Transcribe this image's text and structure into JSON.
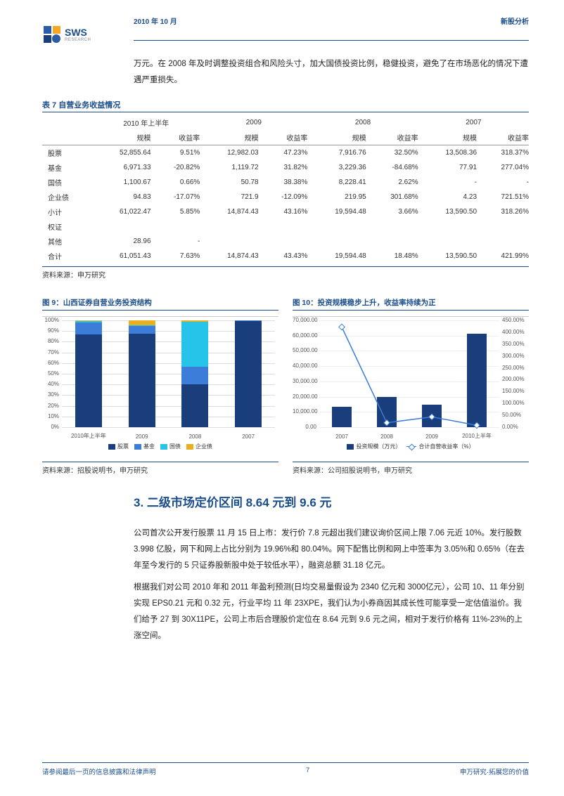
{
  "header": {
    "date": "2010 年 10 月",
    "category": "新股分析"
  },
  "logo": {
    "brand": "SWS",
    "sub": "RESEARCH"
  },
  "intro": "万元。在 2008 年及时调整投资组合和风险头寸，加大国债投资比例，稳健投资，避免了在市场恶化的情况下遭遇严重损失。",
  "table": {
    "title": "表 7 自营业务收益情况",
    "periods": [
      "2010 年上半年",
      "2009",
      "2008",
      "2007"
    ],
    "sub": [
      "规模",
      "收益率"
    ],
    "rows": [
      {
        "label": "股票",
        "cells": [
          "52,855.64",
          "9.51%",
          "12,982.03",
          "47.23%",
          "7,916.76",
          "32.50%",
          "13,508.36",
          "318.37%"
        ]
      },
      {
        "label": "基金",
        "cells": [
          "6,971.33",
          "-20.82%",
          "1,119.72",
          "31.82%",
          "3,229.36",
          "-84.68%",
          "77.91",
          "277.04%"
        ]
      },
      {
        "label": "国债",
        "cells": [
          "1,100.67",
          "0.66%",
          "50.78",
          "38.38%",
          "8,228.41",
          "2.62%",
          "-",
          "-"
        ]
      },
      {
        "label": "企业债",
        "cells": [
          "94.83",
          "-17.07%",
          "721.9",
          "-12.09%",
          "219.95",
          "301.68%",
          "4.23",
          "721.51%"
        ]
      },
      {
        "label": "小计",
        "cells": [
          "61,022.47",
          "5.85%",
          "14,874.43",
          "43.16%",
          "19,594.48",
          "3.66%",
          "13,590.50",
          "318.26%"
        ]
      },
      {
        "label": "权证",
        "cells": [
          "",
          "",
          "",
          "",
          "",
          "",
          "",
          ""
        ]
      },
      {
        "label": "其他",
        "cells": [
          "28.96",
          "-",
          "",
          "",
          "",
          "",
          "",
          ""
        ]
      },
      {
        "label": "合计",
        "cells": [
          "61,051.43",
          "7.63%",
          "14,874.43",
          "43.43%",
          "19,594.48",
          "18.48%",
          "13,590.50",
          "421.99%"
        ]
      }
    ],
    "source": "资料来源：申万研究"
  },
  "chart9": {
    "title": "图 9：山西证券自营业务投资结构",
    "type": "stacked-bar-100",
    "categories": [
      "2010年上半年",
      "2009",
      "2008",
      "2007"
    ],
    "series": [
      {
        "name": "股票",
        "color": "#1a3d7c",
        "values": [
          86.6,
          87.3,
          40.4,
          99.4
        ]
      },
      {
        "name": "基金",
        "color": "#3b7dd8",
        "values": [
          11.4,
          7.5,
          16.5,
          0.57
        ]
      },
      {
        "name": "国债",
        "color": "#25c4e8",
        "values": [
          1.8,
          0.3,
          42.0,
          0.0
        ]
      },
      {
        "name": "企业债",
        "color": "#e8b020",
        "values": [
          0.16,
          4.9,
          1.1,
          0.03
        ]
      }
    ],
    "ytick_step": 10,
    "ymax": 100,
    "source": "资料来源：招股说明书，申万研究"
  },
  "chart10": {
    "title": "图 10：投资规模稳步上升，收益率持续为正",
    "type": "bar-line",
    "categories": [
      "2007",
      "2008",
      "2009",
      "2010上半年"
    ],
    "bar": {
      "name": "投资规模（万元）",
      "color": "#1a3d7c",
      "values": [
        13590,
        19594,
        14874,
        61051
      ],
      "ymax": 70000,
      "ytick_step": 10000
    },
    "line": {
      "name": "合计自营收益率（%）",
      "color": "#3b7dd8",
      "values": [
        421.99,
        18.48,
        43.43,
        7.63
      ],
      "ymax": 450,
      "ytick_step": 50
    },
    "source": "资料来源：公司招股说明书，申万研究"
  },
  "section": {
    "title": "3. 二级市场定价区间 8.64 元到 9.6 元",
    "p1": "公司首次公开发行股票 11 月 15 日上市：发行价 7.8 元超出我们建议询价区间上限 7.06 元近 10%。发行股数 3.998 亿股，网下和网上占比分别为 19.96%和 80.04%。网下配售比例和网上中签率为 3.05%和 0.65%（在去年至今发行的 5 只证券股新股中处于较低水平），融资总额 31.18 亿元。",
    "p2": "根据我们对公司 2010 年和 2011 年盈利预测(日均交易量假设为 2340 亿元和 3000亿元），公司 10、11 年分别实现 EPS0.21 元和 0.32 元，行业平均 11 年 23XPE，我们认为小券商因其成长性可能享受一定估值溢价。我们给予 27 到 30X11PE，公司上市后合理股价定位在 8.64 元到 9.6 元之间，相对于发行价格有 11%-23%的上涨空间。"
  },
  "footer": {
    "left": "请参阅最后一页的信息披露和法律声明",
    "page": "7",
    "right": "申万研究·拓展您的价值"
  }
}
